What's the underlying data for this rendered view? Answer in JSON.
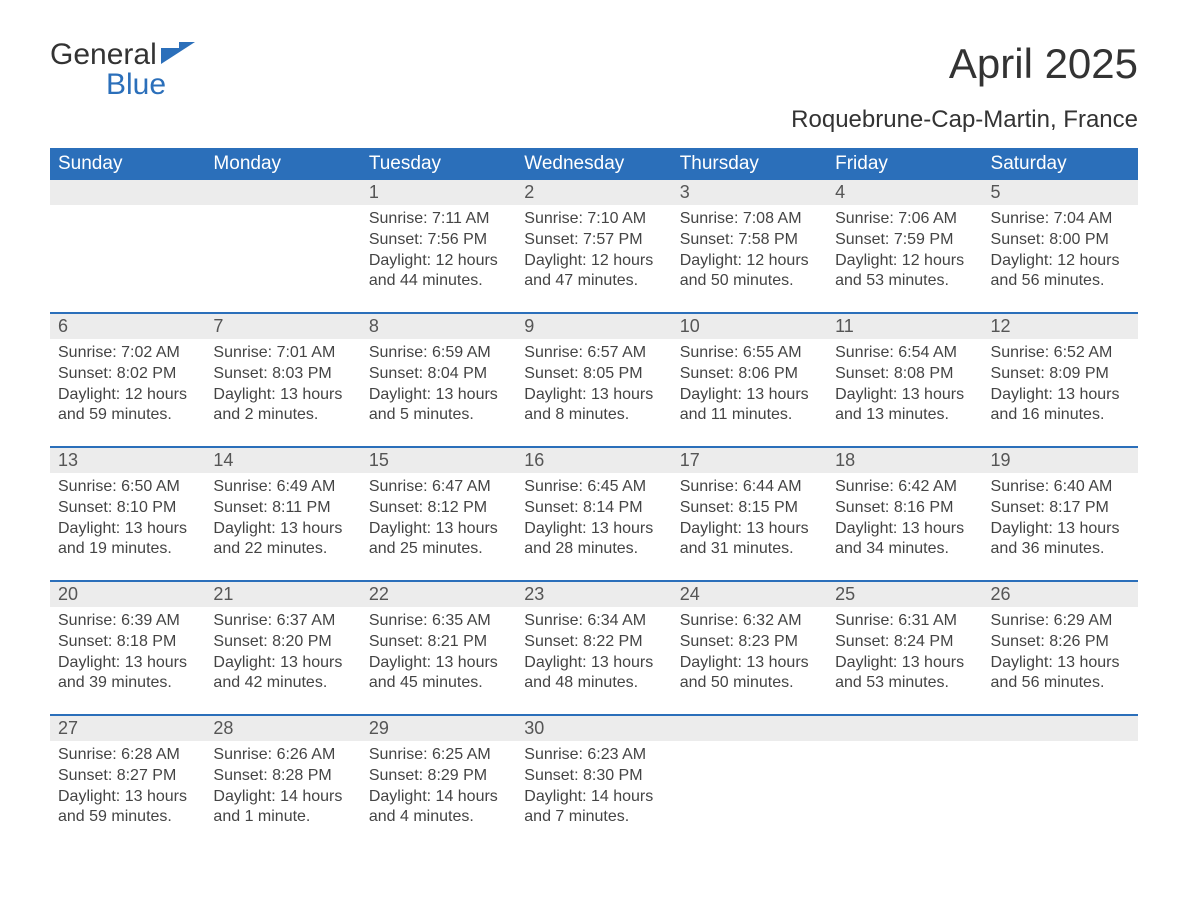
{
  "logo": {
    "line1": "General",
    "line2": "Blue"
  },
  "title": "April 2025",
  "subtitle": "Roquebrune-Cap-Martin, France",
  "colors": {
    "header_bg": "#2b6fba",
    "header_text": "#ffffff",
    "daynum_bg": "#ececec",
    "rule": "#2b6fba",
    "text": "#444444",
    "logo_blue": "#2b6fba"
  },
  "day_headers": [
    "Sunday",
    "Monday",
    "Tuesday",
    "Wednesday",
    "Thursday",
    "Friday",
    "Saturday"
  ],
  "weeks": [
    [
      null,
      null,
      {
        "n": "1",
        "sr": "Sunrise: 7:11 AM",
        "ss": "Sunset: 7:56 PM",
        "d1": "Daylight: 12 hours",
        "d2": "and 44 minutes."
      },
      {
        "n": "2",
        "sr": "Sunrise: 7:10 AM",
        "ss": "Sunset: 7:57 PM",
        "d1": "Daylight: 12 hours",
        "d2": "and 47 minutes."
      },
      {
        "n": "3",
        "sr": "Sunrise: 7:08 AM",
        "ss": "Sunset: 7:58 PM",
        "d1": "Daylight: 12 hours",
        "d2": "and 50 minutes."
      },
      {
        "n": "4",
        "sr": "Sunrise: 7:06 AM",
        "ss": "Sunset: 7:59 PM",
        "d1": "Daylight: 12 hours",
        "d2": "and 53 minutes."
      },
      {
        "n": "5",
        "sr": "Sunrise: 7:04 AM",
        "ss": "Sunset: 8:00 PM",
        "d1": "Daylight: 12 hours",
        "d2": "and 56 minutes."
      }
    ],
    [
      {
        "n": "6",
        "sr": "Sunrise: 7:02 AM",
        "ss": "Sunset: 8:02 PM",
        "d1": "Daylight: 12 hours",
        "d2": "and 59 minutes."
      },
      {
        "n": "7",
        "sr": "Sunrise: 7:01 AM",
        "ss": "Sunset: 8:03 PM",
        "d1": "Daylight: 13 hours",
        "d2": "and 2 minutes."
      },
      {
        "n": "8",
        "sr": "Sunrise: 6:59 AM",
        "ss": "Sunset: 8:04 PM",
        "d1": "Daylight: 13 hours",
        "d2": "and 5 minutes."
      },
      {
        "n": "9",
        "sr": "Sunrise: 6:57 AM",
        "ss": "Sunset: 8:05 PM",
        "d1": "Daylight: 13 hours",
        "d2": "and 8 minutes."
      },
      {
        "n": "10",
        "sr": "Sunrise: 6:55 AM",
        "ss": "Sunset: 8:06 PM",
        "d1": "Daylight: 13 hours",
        "d2": "and 11 minutes."
      },
      {
        "n": "11",
        "sr": "Sunrise: 6:54 AM",
        "ss": "Sunset: 8:08 PM",
        "d1": "Daylight: 13 hours",
        "d2": "and 13 minutes."
      },
      {
        "n": "12",
        "sr": "Sunrise: 6:52 AM",
        "ss": "Sunset: 8:09 PM",
        "d1": "Daylight: 13 hours",
        "d2": "and 16 minutes."
      }
    ],
    [
      {
        "n": "13",
        "sr": "Sunrise: 6:50 AM",
        "ss": "Sunset: 8:10 PM",
        "d1": "Daylight: 13 hours",
        "d2": "and 19 minutes."
      },
      {
        "n": "14",
        "sr": "Sunrise: 6:49 AM",
        "ss": "Sunset: 8:11 PM",
        "d1": "Daylight: 13 hours",
        "d2": "and 22 minutes."
      },
      {
        "n": "15",
        "sr": "Sunrise: 6:47 AM",
        "ss": "Sunset: 8:12 PM",
        "d1": "Daylight: 13 hours",
        "d2": "and 25 minutes."
      },
      {
        "n": "16",
        "sr": "Sunrise: 6:45 AM",
        "ss": "Sunset: 8:14 PM",
        "d1": "Daylight: 13 hours",
        "d2": "and 28 minutes."
      },
      {
        "n": "17",
        "sr": "Sunrise: 6:44 AM",
        "ss": "Sunset: 8:15 PM",
        "d1": "Daylight: 13 hours",
        "d2": "and 31 minutes."
      },
      {
        "n": "18",
        "sr": "Sunrise: 6:42 AM",
        "ss": "Sunset: 8:16 PM",
        "d1": "Daylight: 13 hours",
        "d2": "and 34 minutes."
      },
      {
        "n": "19",
        "sr": "Sunrise: 6:40 AM",
        "ss": "Sunset: 8:17 PM",
        "d1": "Daylight: 13 hours",
        "d2": "and 36 minutes."
      }
    ],
    [
      {
        "n": "20",
        "sr": "Sunrise: 6:39 AM",
        "ss": "Sunset: 8:18 PM",
        "d1": "Daylight: 13 hours",
        "d2": "and 39 minutes."
      },
      {
        "n": "21",
        "sr": "Sunrise: 6:37 AM",
        "ss": "Sunset: 8:20 PM",
        "d1": "Daylight: 13 hours",
        "d2": "and 42 minutes."
      },
      {
        "n": "22",
        "sr": "Sunrise: 6:35 AM",
        "ss": "Sunset: 8:21 PM",
        "d1": "Daylight: 13 hours",
        "d2": "and 45 minutes."
      },
      {
        "n": "23",
        "sr": "Sunrise: 6:34 AM",
        "ss": "Sunset: 8:22 PM",
        "d1": "Daylight: 13 hours",
        "d2": "and 48 minutes."
      },
      {
        "n": "24",
        "sr": "Sunrise: 6:32 AM",
        "ss": "Sunset: 8:23 PM",
        "d1": "Daylight: 13 hours",
        "d2": "and 50 minutes."
      },
      {
        "n": "25",
        "sr": "Sunrise: 6:31 AM",
        "ss": "Sunset: 8:24 PM",
        "d1": "Daylight: 13 hours",
        "d2": "and 53 minutes."
      },
      {
        "n": "26",
        "sr": "Sunrise: 6:29 AM",
        "ss": "Sunset: 8:26 PM",
        "d1": "Daylight: 13 hours",
        "d2": "and 56 minutes."
      }
    ],
    [
      {
        "n": "27",
        "sr": "Sunrise: 6:28 AM",
        "ss": "Sunset: 8:27 PM",
        "d1": "Daylight: 13 hours",
        "d2": "and 59 minutes."
      },
      {
        "n": "28",
        "sr": "Sunrise: 6:26 AM",
        "ss": "Sunset: 8:28 PM",
        "d1": "Daylight: 14 hours",
        "d2": "and 1 minute."
      },
      {
        "n": "29",
        "sr": "Sunrise: 6:25 AM",
        "ss": "Sunset: 8:29 PM",
        "d1": "Daylight: 14 hours",
        "d2": "and 4 minutes."
      },
      {
        "n": "30",
        "sr": "Sunrise: 6:23 AM",
        "ss": "Sunset: 8:30 PM",
        "d1": "Daylight: 14 hours",
        "d2": "and 7 minutes."
      },
      null,
      null,
      null
    ]
  ]
}
